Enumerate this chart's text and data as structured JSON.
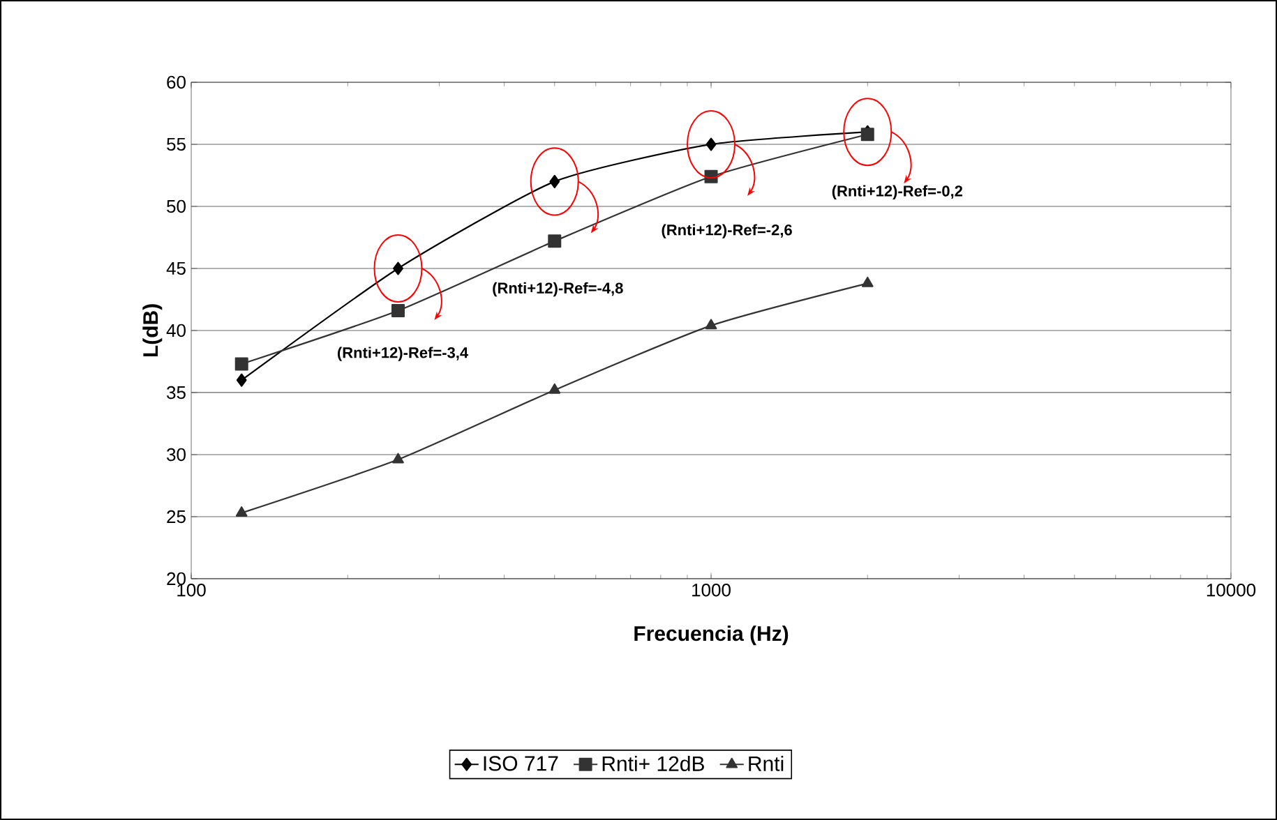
{
  "chart_data": {
    "type": "line",
    "xlabel": "Frecuencia (Hz)",
    "ylabel": "L(dB)",
    "log": "x",
    "x": [
      125,
      250,
      500,
      1000,
      2000
    ],
    "xlim": [
      100,
      10000
    ],
    "xticks": [
      100,
      1000,
      10000
    ],
    "ylim": [
      20,
      60
    ],
    "yticks": [
      20,
      25,
      30,
      35,
      40,
      45,
      50,
      55,
      60
    ],
    "grid": "y",
    "legend": "bottom",
    "line_style": "solid",
    "series": [
      {
        "name": "ISO 717",
        "color": "#000000",
        "marker": "diamond",
        "values": [
          36,
          45,
          52,
          55,
          56
        ]
      },
      {
        "name": "Rnti+ 12dB",
        "color": "#333333",
        "marker": "square",
        "values": [
          37.3,
          41.6,
          47.2,
          52.4,
          55.8
        ]
      },
      {
        "name": "Rnti",
        "color": "#333333",
        "marker": "triangle",
        "values": [
          25.3,
          29.6,
          35.2,
          40.4,
          43.8
        ]
      }
    ],
    "annotations": [
      "(Rnti+12)-Ref=-3,4",
      "(Rnti+12)-Ref=-4,8",
      "(Rnti+12)-Ref=-2,6",
      "(Rnti+12)-Ref=-0,2"
    ]
  }
}
